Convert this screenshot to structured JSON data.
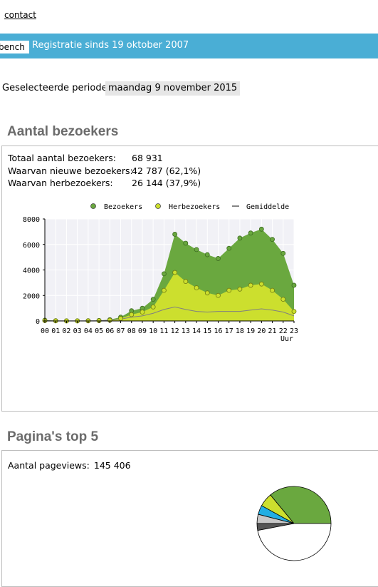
{
  "header": {
    "contact_label": "contact",
    "tab_label": "bench",
    "registration_text": "Registratie sinds 19 oktober 2007"
  },
  "period": {
    "label": "Geselecteerde periode:",
    "value": "maandag 9 november 2015"
  },
  "visitors": {
    "title": "Aantal bezoekers",
    "stats": [
      {
        "label": "Totaal aantal bezoekers:",
        "value": "68 931"
      },
      {
        "label": "Waarvan nieuwe bezoekers:",
        "value": "42 787 (62,1%)"
      },
      {
        "label": "Waarvan herbezoekers:",
        "value": "26 144 (37,9%)"
      }
    ]
  },
  "pages": {
    "title": "Pagina's top 5",
    "pageviews_label": "Aantal pageviews:",
    "pageviews_value": "145 406"
  },
  "colors": {
    "topbar": "#4aaed5",
    "visitors": "#6aa83f",
    "returning": "#ccdf2e",
    "average": "#808080",
    "pie_cyan": "#21aee3",
    "pie_dark": "#555555",
    "pie_light": "#c8c8c8"
  },
  "chart_data": [
    {
      "type": "area",
      "x": [
        "00",
        "01",
        "02",
        "03",
        "04",
        "05",
        "06",
        "07",
        "08",
        "09",
        "10",
        "11",
        "12",
        "13",
        "14",
        "15",
        "16",
        "17",
        "18",
        "19",
        "20",
        "21",
        "22",
        "23"
      ],
      "xlabel": "Uur",
      "ylim": [
        0,
        8000
      ],
      "yticks": [
        0,
        2000,
        4000,
        6000,
        8000
      ],
      "grid": true,
      "legend_position": "top",
      "series": [
        {
          "name": "Bezoekers",
          "values": [
            60,
            20,
            10,
            10,
            20,
            40,
            100,
            300,
            800,
            1000,
            1700,
            3700,
            6800,
            6100,
            5600,
            5200,
            4900,
            5700,
            6500,
            6900,
            7200,
            6400,
            5300,
            2800
          ]
        },
        {
          "name": "Herbezoekers",
          "values": [
            30,
            10,
            5,
            5,
            10,
            20,
            60,
            200,
            500,
            700,
            1100,
            2400,
            3800,
            3100,
            2600,
            2200,
            2000,
            2400,
            2500,
            2800,
            2900,
            2400,
            1700,
            750
          ]
        },
        {
          "name": "Gemiddelde",
          "values": [
            20,
            10,
            5,
            5,
            10,
            20,
            50,
            150,
            300,
            400,
            600,
            900,
            1100,
            900,
            750,
            700,
            750,
            750,
            750,
            850,
            950,
            850,
            700,
            400
          ]
        }
      ]
    },
    {
      "type": "pie",
      "values": [
        36,
        6,
        4,
        4,
        3,
        47
      ],
      "colors": [
        "#6aa83f",
        "#ccdf2e",
        "#21aee3",
        "#c8c8c8",
        "#555555",
        "#ffffff"
      ]
    }
  ]
}
